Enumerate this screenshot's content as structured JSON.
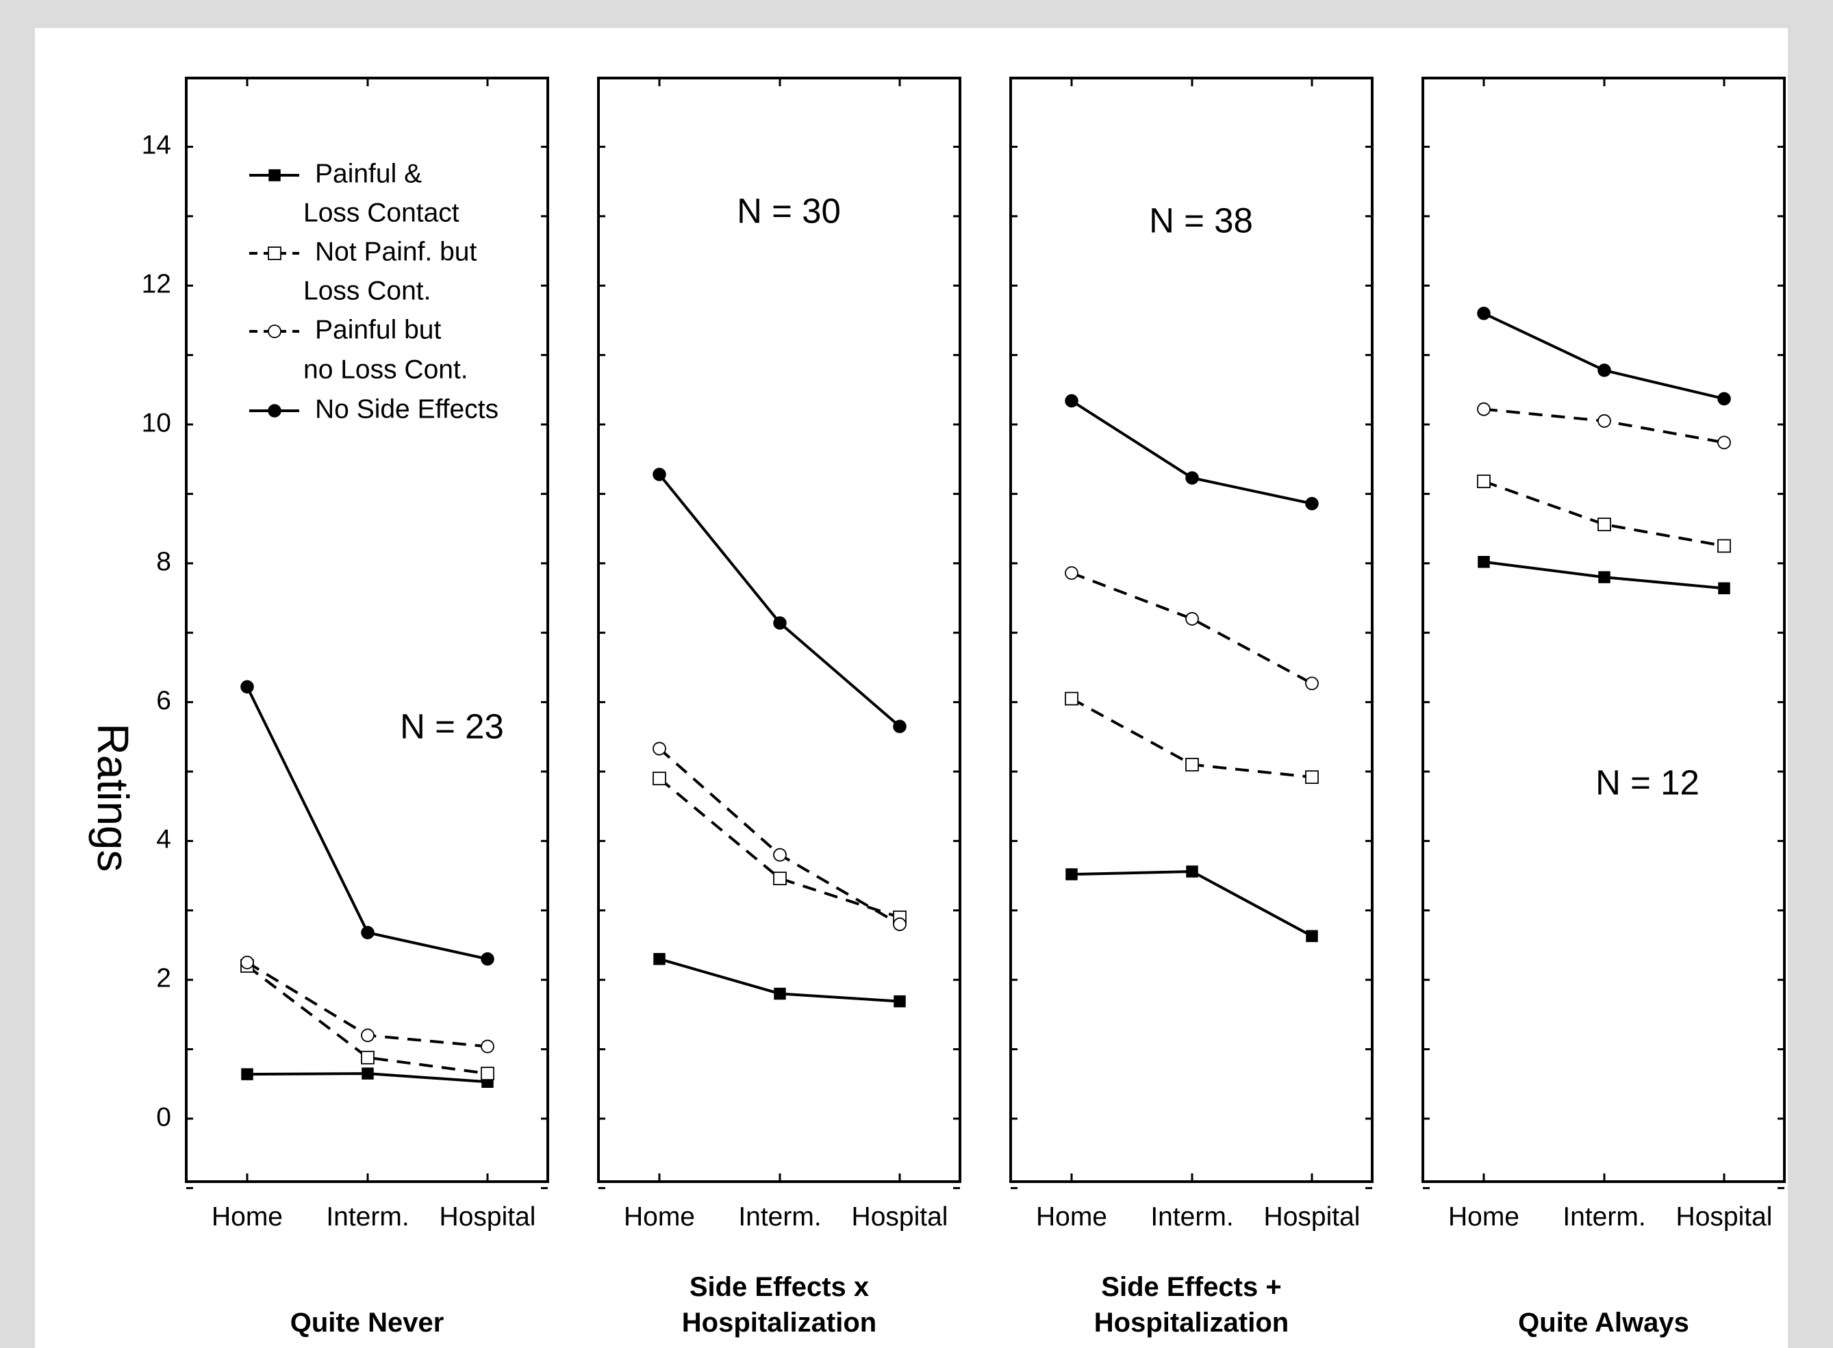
{
  "chart_data": {
    "type": "line",
    "ylabel": "Ratings",
    "ylim": [
      -0.9,
      15
    ],
    "yticks": [
      0,
      2,
      4,
      6,
      8,
      10,
      12,
      14
    ],
    "categories": [
      "Home",
      "Interm.",
      "Hospital"
    ],
    "legend": {
      "placement": "top-left (first panel)",
      "entries": [
        {
          "series": "s1",
          "lines": [
            "Painful &",
            "Loss Contact"
          ]
        },
        {
          "series": "s2",
          "lines": [
            "Not Painf. but",
            "Loss Cont."
          ]
        },
        {
          "series": "s3",
          "lines": [
            "Painful but",
            "no Loss Cont."
          ]
        },
        {
          "series": "s4",
          "lines": [
            "No Side Effects"
          ]
        }
      ]
    },
    "series_style": {
      "s1": {
        "marker": "filled-square",
        "dash": "solid"
      },
      "s2": {
        "marker": "open-square",
        "dash": "dashed"
      },
      "s3": {
        "marker": "open-circle",
        "dash": "dashed"
      },
      "s4": {
        "marker": "filled-circle",
        "dash": "solid"
      }
    },
    "panels": [
      {
        "title_lines": [
          "Quite Never"
        ],
        "n_label": "N = 23",
        "series": [
          {
            "key": "s1",
            "values": [
              0.64,
              0.65,
              0.53
            ]
          },
          {
            "key": "s2",
            "values": [
              2.2,
              0.88,
              0.65
            ]
          },
          {
            "key": "s3",
            "values": [
              2.25,
              1.2,
              1.04
            ]
          },
          {
            "key": "s4",
            "values": [
              6.22,
              2.68,
              2.3
            ]
          }
        ]
      },
      {
        "title_lines": [
          "Side Effects x",
          "Hospitalization"
        ],
        "n_label": "N = 30",
        "series": [
          {
            "key": "s1",
            "values": [
              2.3,
              1.8,
              1.69
            ]
          },
          {
            "key": "s2",
            "values": [
              4.9,
              3.46,
              2.9
            ]
          },
          {
            "key": "s3",
            "values": [
              5.33,
              3.8,
              2.8
            ]
          },
          {
            "key": "s4",
            "values": [
              9.28,
              7.14,
              5.65
            ]
          }
        ]
      },
      {
        "title_lines": [
          "Side Effects +",
          "Hospitalization"
        ],
        "n_label": "N = 38",
        "series": [
          {
            "key": "s1",
            "values": [
              3.52,
              3.56,
              2.63
            ]
          },
          {
            "key": "s2",
            "values": [
              6.05,
              5.1,
              4.92
            ]
          },
          {
            "key": "s3",
            "values": [
              7.86,
              7.2,
              6.27
            ]
          },
          {
            "key": "s4",
            "values": [
              10.34,
              9.23,
              8.86
            ]
          }
        ]
      },
      {
        "title_lines": [
          "Quite Always"
        ],
        "n_label": "N = 12",
        "series": [
          {
            "key": "s1",
            "values": [
              8.02,
              7.8,
              7.64
            ]
          },
          {
            "key": "s2",
            "values": [
              9.18,
              8.56,
              8.25
            ]
          },
          {
            "key": "s3",
            "values": [
              10.22,
              10.05,
              9.74
            ]
          },
          {
            "key": "s4",
            "values": [
              11.6,
              10.78,
              10.37
            ]
          }
        ]
      }
    ]
  }
}
